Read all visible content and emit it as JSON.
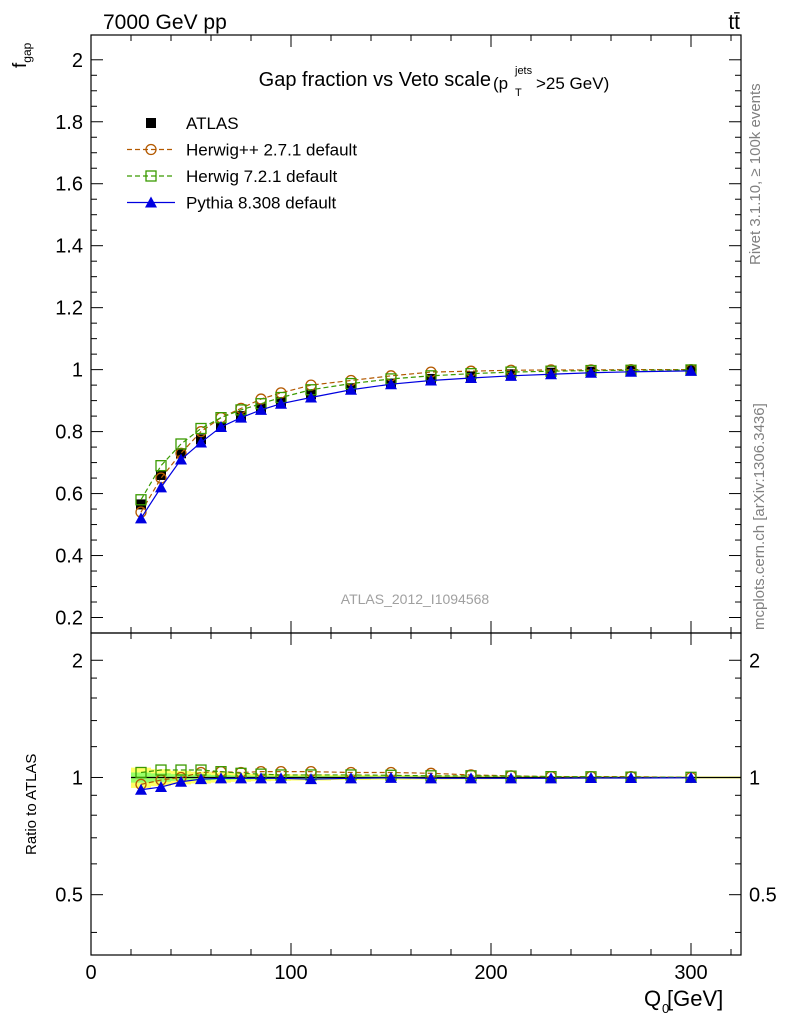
{
  "header": {
    "left_label": "7000 GeV pp",
    "right_label": "tt̄"
  },
  "side_labels": {
    "rivet": "Rivet 3.1.10, ≥ 100k events",
    "mcplots": "mcplots.cern.ch [arXiv:1306.3436]"
  },
  "watermark": "ATLAS_2012_I1094568",
  "colors": {
    "atlas": "#000000",
    "herwigpp": "#b35900",
    "herwig7": "#3a9a00",
    "pythia": "#0000e0",
    "band_yellow": "#ffff66",
    "band_green": "#99ff66"
  },
  "chart_data": [
    {
      "type": "line",
      "title": "Gap fraction vs Veto scale",
      "title_suffix": {
        "open": "(p",
        "sup": "jets",
        "sub": "T",
        "close": ">25 GeV)"
      },
      "ylabel": {
        "main": "f",
        "sub": "gap"
      },
      "xlim": [
        0,
        325
      ],
      "ylim": [
        0.15,
        2.08
      ],
      "yticks": [
        0.2,
        0.4,
        0.6,
        0.8,
        1,
        1.2,
        1.4,
        1.6,
        1.8,
        2
      ],
      "ytick_labels": [
        "0.2",
        "0.4",
        "0.6",
        "0.8",
        "1",
        "1.2",
        "1.4",
        "1.6",
        "1.8",
        "2"
      ],
      "x": [
        25,
        35,
        45,
        55,
        65,
        75,
        85,
        95,
        110,
        130,
        150,
        170,
        190,
        210,
        230,
        250,
        270,
        300
      ],
      "series": [
        {
          "name": "ATLAS",
          "marker": "filled-square",
          "line": "none",
          "values": [
            0.565,
            0.66,
            0.73,
            0.775,
            0.815,
            0.85,
            0.875,
            0.895,
            0.92,
            0.94,
            0.955,
            0.97,
            0.978,
            0.985,
            0.99,
            0.993,
            0.996,
            0.998
          ]
        },
        {
          "name": "Herwig++ 2.7.1 default",
          "marker": "open-circle",
          "line": "dashed",
          "values": [
            0.54,
            0.65,
            0.73,
            0.8,
            0.845,
            0.875,
            0.905,
            0.925,
            0.95,
            0.965,
            0.98,
            0.992,
            0.995,
            0.998,
            0.999,
            0.999,
            1.0,
            1.0
          ]
        },
        {
          "name": "Herwig 7.2.1 default",
          "marker": "open-square",
          "line": "dashed",
          "values": [
            0.58,
            0.69,
            0.76,
            0.81,
            0.845,
            0.87,
            0.89,
            0.91,
            0.935,
            0.955,
            0.97,
            0.98,
            0.987,
            0.992,
            0.995,
            0.997,
            0.998,
            0.999
          ]
        },
        {
          "name": "Pythia 8.308 default",
          "marker": "filled-triangle",
          "line": "solid",
          "values": [
            0.52,
            0.62,
            0.71,
            0.765,
            0.815,
            0.845,
            0.87,
            0.89,
            0.91,
            0.935,
            0.953,
            0.965,
            0.973,
            0.98,
            0.985,
            0.99,
            0.993,
            0.996
          ]
        }
      ],
      "legend": "top-left"
    },
    {
      "type": "line",
      "ylabel": "Ratio to ATLAS",
      "xlabel": {
        "main": "Q",
        "sub": "0",
        "unit": " [GeV]"
      },
      "xlim": [
        0,
        325
      ],
      "ylim": [
        0.35,
        2.35
      ],
      "log_y": true,
      "yticks": [
        0.5,
        1,
        2
      ],
      "ytick_labels": [
        "0.5",
        "1",
        "2"
      ],
      "xticks": [
        0,
        100,
        200,
        300
      ],
      "xtick_labels": [
        "0",
        "100",
        "200",
        "300"
      ],
      "x": [
        25,
        35,
        45,
        55,
        65,
        75,
        85,
        95,
        110,
        130,
        150,
        170,
        190,
        210,
        230,
        250,
        270,
        300
      ],
      "bin_edges": [
        20,
        30,
        40,
        50,
        60,
        70,
        80,
        90,
        100,
        120,
        140,
        160,
        180,
        200,
        220,
        240,
        260,
        280,
        325
      ],
      "band_yellow_halfwidth": [
        0.06,
        0.05,
        0.04,
        0.035,
        0.03,
        0.025,
        0.022,
        0.02,
        0.018,
        0.015,
        0.013,
        0.012,
        0.011,
        0.01,
        0.009,
        0.008,
        0.007,
        0.006
      ],
      "band_green_halfwidth": [
        0.03,
        0.025,
        0.02,
        0.018,
        0.015,
        0.013,
        0.011,
        0.01,
        0.009,
        0.008,
        0.007,
        0.006,
        0.005,
        0.005,
        0.004,
        0.004,
        0.004,
        0.003
      ],
      "series": [
        {
          "name": "Herwig++ 2.7.1 default",
          "marker": "open-circle",
          "line": "dashed",
          "values": [
            0.96,
            0.985,
            1.0,
            1.03,
            1.035,
            1.03,
            1.035,
            1.035,
            1.035,
            1.03,
            1.03,
            1.025,
            1.015,
            1.01,
            1.005,
            1.005,
            1.005,
            1.0
          ]
        },
        {
          "name": "Herwig 7.2.1 default",
          "marker": "open-square",
          "line": "dashed",
          "values": [
            1.03,
            1.045,
            1.045,
            1.045,
            1.035,
            1.025,
            1.02,
            1.015,
            1.015,
            1.015,
            1.013,
            1.01,
            1.01,
            1.008,
            1.005,
            1.004,
            1.002,
            1.001
          ]
        },
        {
          "name": "Pythia 8.308 default",
          "marker": "filled-triangle",
          "line": "solid",
          "values": [
            0.93,
            0.945,
            0.975,
            0.99,
            0.995,
            0.995,
            0.995,
            0.995,
            0.99,
            0.995,
            0.998,
            0.995,
            0.995,
            0.995,
            0.995,
            0.997,
            0.997,
            0.998
          ]
        }
      ]
    }
  ]
}
